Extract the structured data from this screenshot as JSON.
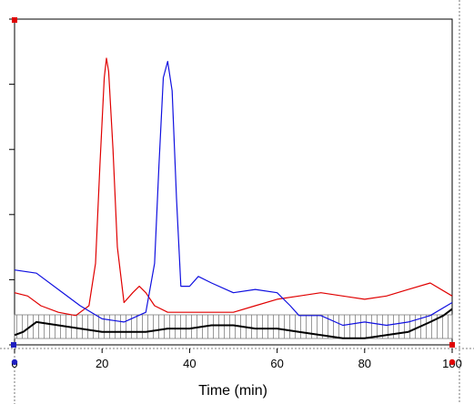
{
  "chart_data": {
    "type": "line",
    "title": "",
    "xlabel": "Time (min)",
    "ylabel": "",
    "xlim": [
      0,
      100
    ],
    "ylim": [
      0,
      100
    ],
    "x_ticks": [
      0,
      20,
      40,
      60,
      80,
      100
    ],
    "x_tick_labels": [
      "0",
      "20",
      "40",
      "60",
      "80",
      "100"
    ],
    "grid": false,
    "legend": "none",
    "series": [
      {
        "color": "#e00000",
        "x": [
          0,
          3,
          6,
          10,
          14,
          17,
          18.5,
          19.5,
          20.5,
          21,
          21.5,
          22.5,
          23.5,
          25,
          27,
          28.5,
          30,
          32,
          35,
          40,
          45,
          50,
          55,
          60,
          65,
          70,
          75,
          80,
          85,
          90,
          95,
          100
        ],
        "y": [
          16,
          15,
          12,
          10,
          9,
          12,
          25,
          55,
          82,
          88,
          84,
          60,
          30,
          13,
          16,
          18,
          16,
          12,
          10,
          10,
          10,
          10,
          12,
          14,
          15,
          16,
          15,
          14,
          15,
          17,
          19,
          15
        ]
      },
      {
        "color": "#1010e0",
        "x": [
          0,
          5,
          10,
          15,
          20,
          25,
          30,
          32,
          33,
          34,
          35,
          36,
          37,
          38,
          40,
          42,
          45,
          50,
          55,
          60,
          63,
          65,
          70,
          75,
          80,
          85,
          90,
          95,
          100
        ],
        "y": [
          23,
          22,
          17,
          12,
          8,
          7,
          10,
          25,
          55,
          82,
          87,
          78,
          45,
          18,
          18,
          21,
          19,
          16,
          17,
          16,
          12,
          9,
          9,
          6,
          7,
          6,
          7,
          9,
          13
        ]
      },
      {
        "color": "#000000",
        "x": [
          0,
          2,
          5,
          10,
          15,
          20,
          25,
          30,
          35,
          40,
          45,
          50,
          55,
          60,
          65,
          70,
          75,
          80,
          85,
          90,
          95,
          98,
          100
        ],
        "y": [
          3,
          4,
          7,
          6,
          5,
          4,
          4,
          4,
          5,
          5,
          6,
          6,
          5,
          5,
          4,
          3,
          2,
          2,
          3,
          4,
          7,
          9,
          11
        ]
      }
    ]
  }
}
